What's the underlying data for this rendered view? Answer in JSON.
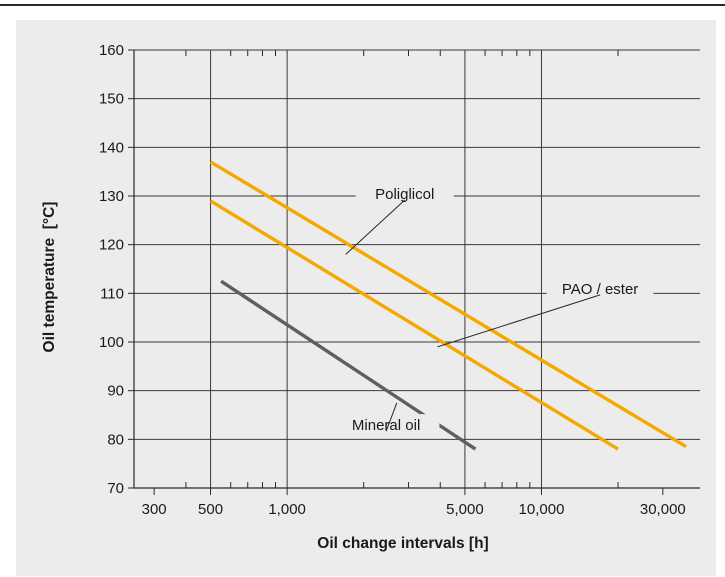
{
  "chart_data": {
    "type": "line",
    "xscale": "log",
    "xlabel": "Oil change intervals [h]",
    "ylabel": "Oil temperature  [°C]",
    "xlim": [
      250,
      42000
    ],
    "ylim": [
      70,
      160
    ],
    "x_ticks": [
      {
        "value": 300,
        "label": "300"
      },
      {
        "value": 500,
        "label": "500"
      },
      {
        "value": 1000,
        "label": "1,000"
      },
      {
        "value": 5000,
        "label": "5,000"
      },
      {
        "value": 10000,
        "label": "10,000"
      },
      {
        "value": 30000,
        "label": "30,000"
      }
    ],
    "x_minor_ticks": [
      400,
      600,
      700,
      800,
      900,
      2000,
      3000,
      4000,
      6000,
      7000,
      8000,
      9000,
      20000
    ],
    "x_gridlines": [
      500,
      1000,
      5000,
      10000
    ],
    "y_ticks": [
      70,
      80,
      90,
      100,
      110,
      120,
      130,
      140,
      150,
      160
    ],
    "grid": true,
    "series": [
      {
        "name": "Poliglicol",
        "color": "#f5a800",
        "x": [
          500,
          37000
        ],
        "y": [
          137,
          78.5
        ]
      },
      {
        "name": "PAO / ester",
        "color": "#f5a800",
        "x": [
          500,
          20000
        ],
        "y": [
          129,
          78
        ]
      },
      {
        "name": "Mineral oil",
        "color": "#5f5f5f",
        "x": [
          550,
          5500
        ],
        "y": [
          112.5,
          78
        ]
      }
    ],
    "annotations": [
      {
        "text": "Poliglicol",
        "x": 2900,
        "y": 130,
        "anchor": "middle",
        "leader_to": [
          1700,
          118
        ]
      },
      {
        "text": "PAO / ester",
        "x": 17000,
        "y": 110.5,
        "anchor": "middle",
        "leader_to": [
          3900,
          99
        ]
      },
      {
        "text": "Mineral oil",
        "x": 2450,
        "y": 82.5,
        "anchor": "middle",
        "leader_to": [
          2700,
          87.5
        ]
      }
    ]
  }
}
